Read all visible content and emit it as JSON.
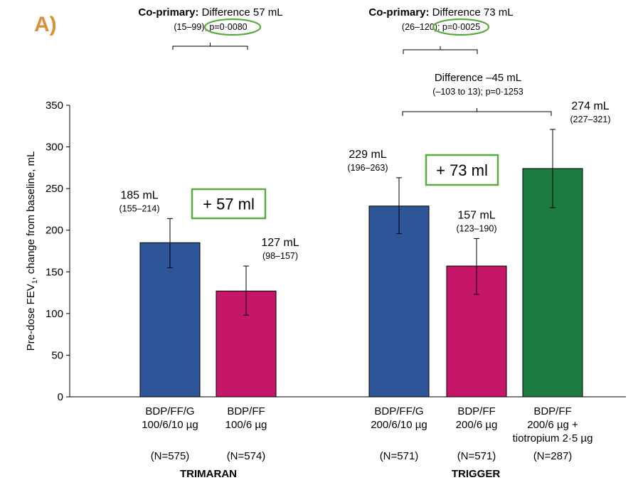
{
  "panel_label": "A)",
  "colors": {
    "blue": "#2E5597",
    "magenta": "#C5166A",
    "green": "#1E7B3F",
    "panel_label": "#D9903C",
    "callout": "#58AD3F"
  },
  "chart_data": {
    "type": "bar",
    "ylabel_prefix": "Pre-dose FEV",
    "ylabel_sub": "1",
    "ylabel_suffix": ", change from baseline, mL",
    "ylim": [
      0,
      350
    ],
    "yticks": [
      0,
      50,
      100,
      150,
      200,
      250,
      300,
      350
    ],
    "grid": false,
    "groups": [
      {
        "name": "TRIMARAN",
        "bars": [
          {
            "key": "b1",
            "line1": "BDP/FF/G",
            "line2": "100/6/10 µg",
            "line3": "",
            "n": "(N=575)",
            "value": 185,
            "ci": [
              155,
              214
            ],
            "value_label": "185 mL",
            "ci_label": "(155–214)",
            "color": "blue"
          },
          {
            "key": "b2",
            "line1": "BDP/FF",
            "line2": "100/6 µg",
            "line3": "",
            "n": "(N=574)",
            "value": 127,
            "ci": [
              98,
              157
            ],
            "value_label": "127 mL",
            "ci_label": "(98–157)",
            "color": "magenta"
          }
        ]
      },
      {
        "name": "TRIGGER",
        "bars": [
          {
            "key": "b3",
            "line1": "BDP/FF/G",
            "line2": "200/6/10 µg",
            "line3": "",
            "n": "(N=571)",
            "value": 229,
            "ci": [
              196,
              263
            ],
            "value_label": "229 mL",
            "ci_label": "(196–263)",
            "color": "blue"
          },
          {
            "key": "b4",
            "line1": "BDP/FF",
            "line2": "200/6 µg",
            "line3": "",
            "n": "(N=571)",
            "value": 157,
            "ci": [
              123,
              190
            ],
            "value_label": "157 mL",
            "ci_label": "(123–190)",
            "color": "magenta"
          },
          {
            "key": "b5",
            "line1": "BDP/FF",
            "line2": "200/6 µg +",
            "line3": "tiotropium 2·5 µg",
            "n": "(N=287)",
            "value": 274,
            "ci": [
              227,
              321
            ],
            "value_label": "274 mL",
            "ci_label": "(227–321)",
            "color": "green"
          }
        ]
      }
    ],
    "comparisons": [
      {
        "key": "c1",
        "between": [
          "b1",
          "b2"
        ],
        "bold": "Co-primary:",
        "text": " Difference 57 mL",
        "ci": "(15–99); ",
        "p": "p=0·0080",
        "p_circled": true
      },
      {
        "key": "c2",
        "between": [
          "b3",
          "b4"
        ],
        "bold": "Co-primary:",
        "text": " Difference 73 mL",
        "ci": "(26–120); ",
        "p": "p=0·0025",
        "p_circled": true
      },
      {
        "key": "c3",
        "between": [
          "b3",
          "b5"
        ],
        "bold": "",
        "text": "Difference –45 mL",
        "ci": "(–103 to 13); ",
        "p": "p=0·1253",
        "p_circled": false
      }
    ],
    "callouts": [
      {
        "key": "k1",
        "text": "+ 57 ml",
        "group": "TRIMARAN"
      },
      {
        "key": "k2",
        "text": "+ 73 ml",
        "group": "TRIGGER"
      }
    ]
  }
}
